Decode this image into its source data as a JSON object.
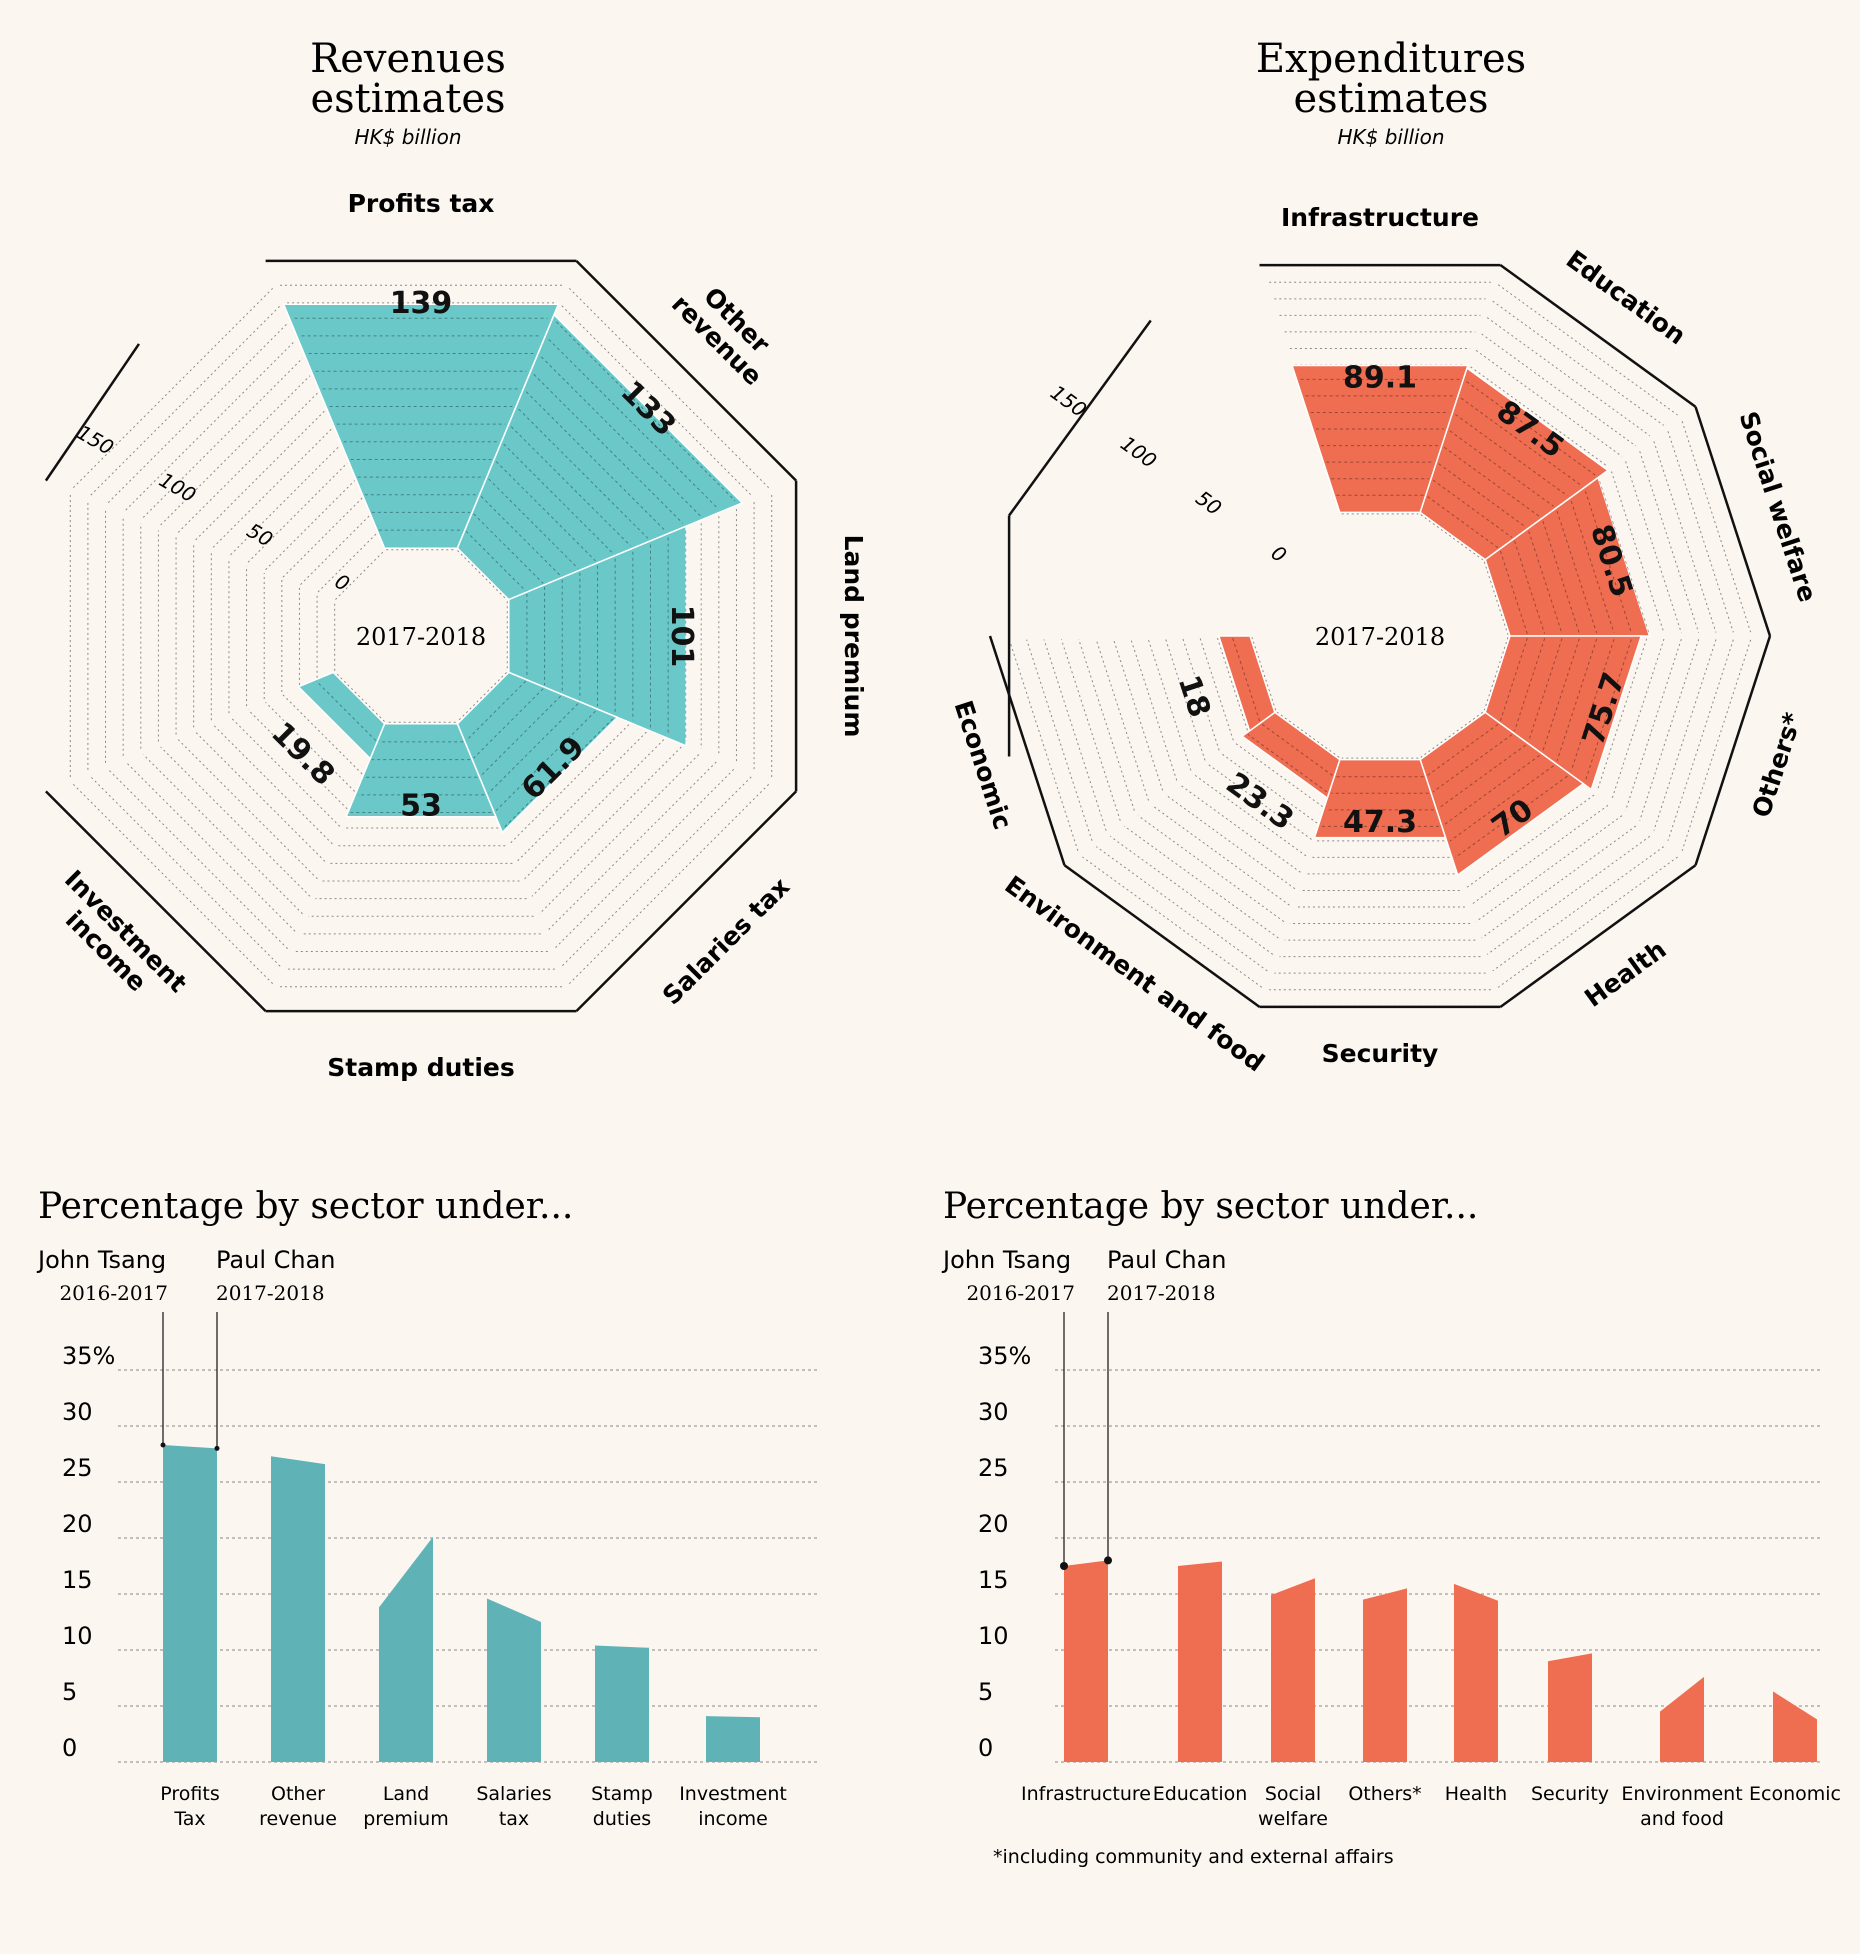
{
  "colors": {
    "revenue": "#5fb3b6",
    "revenue_polar": "#6ac8c9",
    "expenditure": "#ef6d50",
    "background": "#fcf6f0",
    "ink": "#111111"
  },
  "charts": {
    "revenue_polar": {
      "title_line1": "Revenues",
      "title_line2": "estimates",
      "unit": "HK$ billion",
      "center_label": "2017-2018",
      "scale_labels": [
        "0",
        "50",
        "100",
        "150"
      ]
    },
    "expenditure_polar": {
      "title_line1": "Expenditures",
      "title_line2": "estimates",
      "unit": "HK$ billion",
      "center_label": "2017-2018",
      "scale_labels": [
        "0",
        "50",
        "100",
        "150"
      ]
    },
    "revenue_bars": {
      "title": "Percentage by sector under...",
      "legend": [
        {
          "name": "John Tsang",
          "period": "2016-2017"
        },
        {
          "name": "Paul Chan",
          "period": "2017-2018"
        }
      ],
      "y_ticks": [
        "35%",
        "30",
        "25",
        "20",
        "15",
        "10",
        "5",
        "0"
      ]
    },
    "expenditure_bars": {
      "title": "Percentage by sector under...",
      "legend": [
        {
          "name": "John Tsang",
          "period": "2016-2017"
        },
        {
          "name": "Paul Chan",
          "period": "2017-2018"
        }
      ],
      "y_ticks": [
        "35%",
        "30",
        "25",
        "20",
        "15",
        "10",
        "5",
        "0"
      ],
      "footnote": "*including community and external affairs"
    }
  },
  "chart_data": [
    {
      "type": "radial-bar",
      "title": "Revenues estimates",
      "unit": "HK$ billion",
      "period": "2017-2018",
      "range": [
        0,
        150
      ],
      "categories": [
        "Profits tax",
        "Other revenue",
        "Land premium",
        "Salaries tax",
        "Stamp duties",
        "Investment income"
      ],
      "values": [
        139,
        133,
        101,
        61.9,
        53,
        19.8
      ],
      "value_labels": [
        "139",
        "133",
        "101",
        "61.9",
        "53",
        "19.8"
      ]
    },
    {
      "type": "radial-bar",
      "title": "Expenditures estimates",
      "unit": "HK$ billion",
      "period": "2017-2018",
      "range": [
        0,
        150
      ],
      "categories": [
        "Infrastructure",
        "Education",
        "Social welfare",
        "Others*",
        "Health",
        "Security",
        "Environment and food",
        "Economic"
      ],
      "values": [
        89.1,
        87.5,
        80.5,
        75.7,
        70,
        47.3,
        23.3,
        18
      ],
      "value_labels": [
        "89.1",
        "87.5",
        "80.5",
        "75.7",
        "70",
        "47.3",
        "23.3",
        "18"
      ]
    },
    {
      "type": "area",
      "title": "Percentage by sector under...",
      "categories": [
        "Profits Tax",
        "Other revenue",
        "Land premium",
        "Salaries tax",
        "Stamp duties",
        "Investment income"
      ],
      "series": [
        {
          "name": "John Tsang 2016-2017",
          "values": [
            28.3,
            27.3,
            13.8,
            14.6,
            10.4,
            4.1
          ]
        },
        {
          "name": "Paul Chan 2017-2018",
          "values": [
            28.0,
            26.6,
            20.1,
            12.5,
            10.2,
            4.0
          ]
        }
      ],
      "ylim": [
        0,
        35
      ],
      "y_unit": "%"
    },
    {
      "type": "area",
      "title": "Percentage by sector under...",
      "categories": [
        "Infrastructure",
        "Education",
        "Social welfare",
        "Others*",
        "Health",
        "Security",
        "Environment and food",
        "Economic"
      ],
      "series": [
        {
          "name": "John Tsang 2016-2017",
          "values": [
            17.5,
            17.5,
            14.9,
            14.5,
            15.9,
            9.0,
            4.5,
            6.3
          ]
        },
        {
          "name": "Paul Chan 2017-2018",
          "values": [
            18.0,
            17.9,
            16.4,
            15.5,
            14.4,
            9.7,
            7.6,
            3.8
          ]
        }
      ],
      "ylim": [
        0,
        35
      ],
      "y_unit": "%",
      "footnote": "*including community and external affairs"
    }
  ]
}
